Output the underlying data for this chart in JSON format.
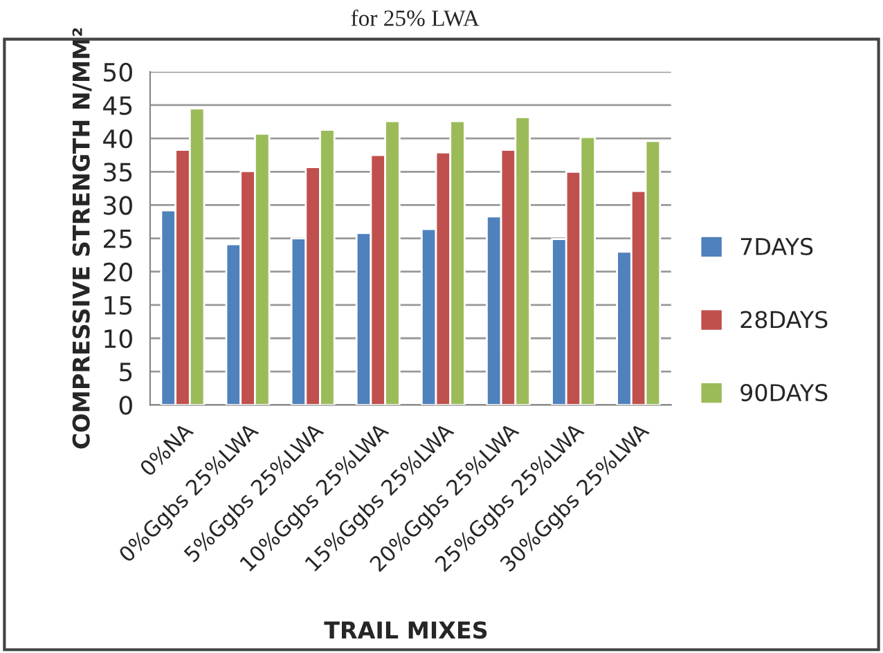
{
  "chart_data": {
    "type": "bar",
    "title": "for 25% LWA",
    "xlabel": "TRAIL MIXES",
    "ylabel": "COMPRESSIVE STRENGTH N/MM²",
    "categories": [
      "0%NA",
      "0%Ggbs 25%LWA",
      "5%Ggbs 25%LWA",
      "10%Ggbs 25%LWA",
      "15%Ggbs 25%LWA",
      "20%Ggbs 25%LWA",
      "25%Ggbs 25%LWA",
      "30%Ggbs 25%LWA"
    ],
    "series": [
      {
        "name": "7DAYS",
        "color": "#4f81bd",
        "values": [
          29.2,
          24.1,
          25.0,
          25.8,
          26.4,
          28.3,
          24.9,
          23.0
        ]
      },
      {
        "name": "28DAYS",
        "color": "#c0504d",
        "values": [
          38.3,
          35.1,
          35.7,
          37.5,
          37.9,
          38.3,
          35.0,
          32.1
        ]
      },
      {
        "name": "90DAYS",
        "color": "#9bbb59",
        "values": [
          44.5,
          40.7,
          41.3,
          42.6,
          42.6,
          43.2,
          40.2,
          39.6
        ]
      }
    ],
    "ylim": [
      0,
      50
    ],
    "yticks": [
      0,
      5,
      10,
      15,
      20,
      25,
      30,
      35,
      40,
      45,
      50
    ],
    "grid": "y",
    "legend": "right"
  }
}
